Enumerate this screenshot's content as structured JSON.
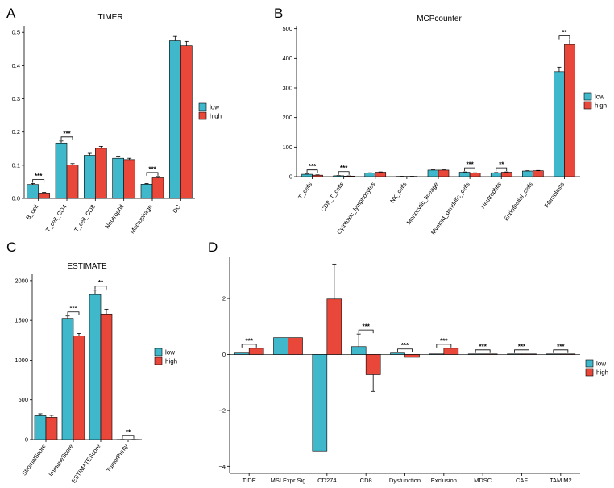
{
  "colors": {
    "low": "#3fb8cc",
    "high": "#e8473a"
  },
  "chart_data": [
    {
      "panel": "A",
      "type": "bar",
      "title": "TIMER",
      "categories": [
        "B_cell",
        "T_cell_CD4",
        "T_cell_CD8",
        "Neutrophil",
        "Macrophage",
        "DC"
      ],
      "series": [
        {
          "name": "low",
          "values": [
            0.042,
            0.167,
            0.13,
            0.121,
            0.043,
            0.475
          ],
          "errors": [
            0.003,
            0.006,
            0.006,
            0.004,
            0.002,
            0.013
          ]
        },
        {
          "name": "high",
          "values": [
            0.016,
            0.101,
            0.151,
            0.117,
            0.062,
            0.46
          ],
          "errors": [
            0.002,
            0.004,
            0.006,
            0.004,
            0.004,
            0.013
          ]
        }
      ],
      "ylim": [
        0,
        0.52
      ],
      "yticks": [
        0.0,
        0.1,
        0.2,
        0.3,
        0.4,
        0.5
      ],
      "ytick_labels": [
        "0.0",
        "0.1",
        "0.2",
        "0.3",
        "0.4",
        "0.5"
      ],
      "significance": [
        {
          "index": 0,
          "label": "***"
        },
        {
          "index": 1,
          "label": "***"
        },
        {
          "index": 4,
          "label": "***"
        }
      ],
      "legend": [
        "low",
        "high"
      ]
    },
    {
      "panel": "B",
      "type": "bar",
      "title": "MCPcounter",
      "categories": [
        "T_cells",
        "CD8_T_cells",
        "Cytotoxic_lymphocytes",
        "NK_cells",
        "Monocytic_lineage",
        "Myeloid_dendritic_cells",
        "Neutrophils",
        "Endothelial_cells",
        "Fibroblasts"
      ],
      "series": [
        {
          "name": "low",
          "values": [
            8,
            3,
            12,
            1,
            22,
            15,
            13,
            19,
            355
          ],
          "errors": [
            1,
            0.5,
            1,
            0.2,
            1,
            1,
            1,
            1,
            15
          ]
        },
        {
          "name": "high",
          "values": [
            5,
            2,
            15,
            1,
            22,
            12,
            15,
            20,
            447
          ],
          "errors": [
            1,
            0.5,
            1,
            0.2,
            1,
            1,
            1,
            1,
            15
          ]
        }
      ],
      "ylim": [
        0,
        510
      ],
      "yticks": [
        0,
        100,
        200,
        300,
        400,
        500
      ],
      "ytick_labels": [
        "0",
        "100",
        "200",
        "300",
        "400",
        "500"
      ],
      "significance": [
        {
          "index": 0,
          "label": "***"
        },
        {
          "index": 1,
          "label": "***"
        },
        {
          "index": 5,
          "label": "***"
        },
        {
          "index": 6,
          "label": "**"
        },
        {
          "index": 8,
          "label": "**"
        }
      ],
      "legend": [
        "low",
        "high"
      ]
    },
    {
      "panel": "C",
      "type": "bar",
      "title": "ESTIMATE",
      "categories": [
        "StromalScore",
        "ImmuneScore",
        "ESTIMATEScore",
        "TumorPurity"
      ],
      "series": [
        {
          "name": "low",
          "values": [
            300,
            1525,
            1825,
            2
          ],
          "errors": [
            25,
            30,
            55,
            0.5
          ]
        },
        {
          "name": "high",
          "values": [
            280,
            1305,
            1580,
            2
          ],
          "errors": [
            25,
            30,
            60,
            0.5
          ]
        }
      ],
      "ylim": [
        0,
        2080
      ],
      "yticks": [
        0,
        500,
        1000,
        1500,
        2000
      ],
      "ytick_labels": [
        "0",
        "500",
        "1000",
        "1500",
        "2000"
      ],
      "significance": [
        {
          "index": 1,
          "label": "***"
        },
        {
          "index": 2,
          "label": "**"
        },
        {
          "index": 3,
          "label": "**"
        }
      ],
      "legend": [
        "low",
        "high"
      ]
    },
    {
      "panel": "D",
      "type": "bar",
      "title": "",
      "categories": [
        "TIDE",
        "MSI Expr Sig",
        "CD274",
        "CD8",
        "Dysfunction",
        "Exclusion",
        "MDSC",
        "CAF",
        "TAM M2"
      ],
      "series": [
        {
          "name": "low",
          "values": [
            0.05,
            0.6,
            -3.45,
            0.28,
            0.05,
            0.02,
            0.02,
            0.02,
            0.02
          ],
          "errors": [
            0,
            0,
            0,
            0.45,
            0,
            0,
            0,
            0,
            0
          ]
        },
        {
          "name": "high",
          "values": [
            0.22,
            0.6,
            1.98,
            -0.72,
            -0.1,
            0.22,
            0.02,
            0.02,
            0.02
          ],
          "errors": [
            0,
            0,
            1.25,
            0.6,
            0,
            0,
            0,
            0,
            0
          ]
        }
      ],
      "ylim": [
        -4.25,
        3.5
      ],
      "yticks": [
        -4,
        -2,
        0,
        2
      ],
      "ytick_labels": [
        "−4",
        "−2",
        "0",
        "2"
      ],
      "significance": [
        {
          "index": 0,
          "label": "***"
        },
        {
          "index": 3,
          "label": "***"
        },
        {
          "index": 4,
          "label": "***"
        },
        {
          "index": 5,
          "label": "***"
        },
        {
          "index": 6,
          "label": "***"
        },
        {
          "index": 7,
          "label": "***"
        },
        {
          "index": 8,
          "label": "***"
        }
      ],
      "legend": [
        "low",
        "high"
      ]
    }
  ]
}
